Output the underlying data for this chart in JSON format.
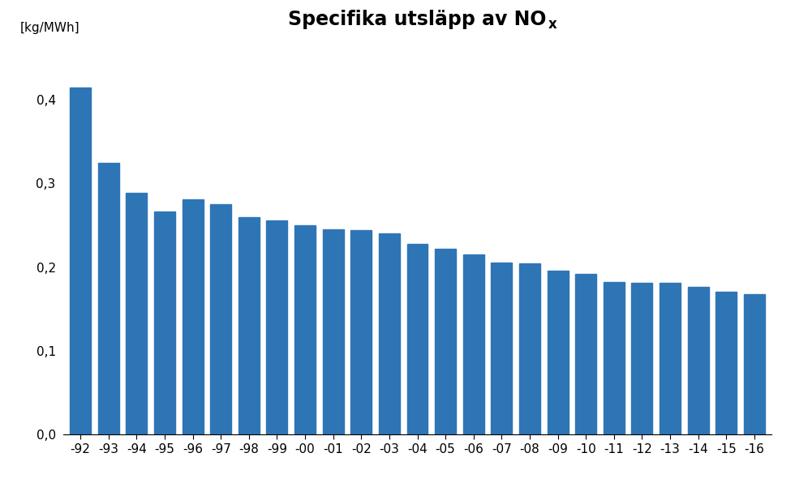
{
  "categories": [
    "-92",
    "-93",
    "-94",
    "-95",
    "-96",
    "-97",
    "-98",
    "-99",
    "-00",
    "-01",
    "-02",
    "-03",
    "-04",
    "-05",
    "-06",
    "-07",
    "-08",
    "-09",
    "-10",
    "-11",
    "-12",
    "-13",
    "-14",
    "-15",
    "-16"
  ],
  "values": [
    0.415,
    0.325,
    0.289,
    0.267,
    0.281,
    0.275,
    0.26,
    0.256,
    0.25,
    0.245,
    0.244,
    0.24,
    0.228,
    0.222,
    0.215,
    0.206,
    0.205,
    0.196,
    0.192,
    0.182,
    0.181,
    0.181,
    0.177,
    0.171,
    0.168
  ],
  "bar_color": "#2E75B6",
  "title_main": "Specifika utsläpp av NO",
  "title_sub": "x",
  "ylabel": "[kg/MWh]",
  "ylim": [
    0,
    0.45
  ],
  "yticks": [
    0.0,
    0.1,
    0.2,
    0.3,
    0.4
  ],
  "ytick_labels": [
    "0,0",
    "0,1",
    "0,2",
    "0,3",
    "0,4"
  ],
  "background_color": "#ffffff",
  "title_fontsize": 17,
  "axis_fontsize": 11,
  "tick_fontsize": 11
}
